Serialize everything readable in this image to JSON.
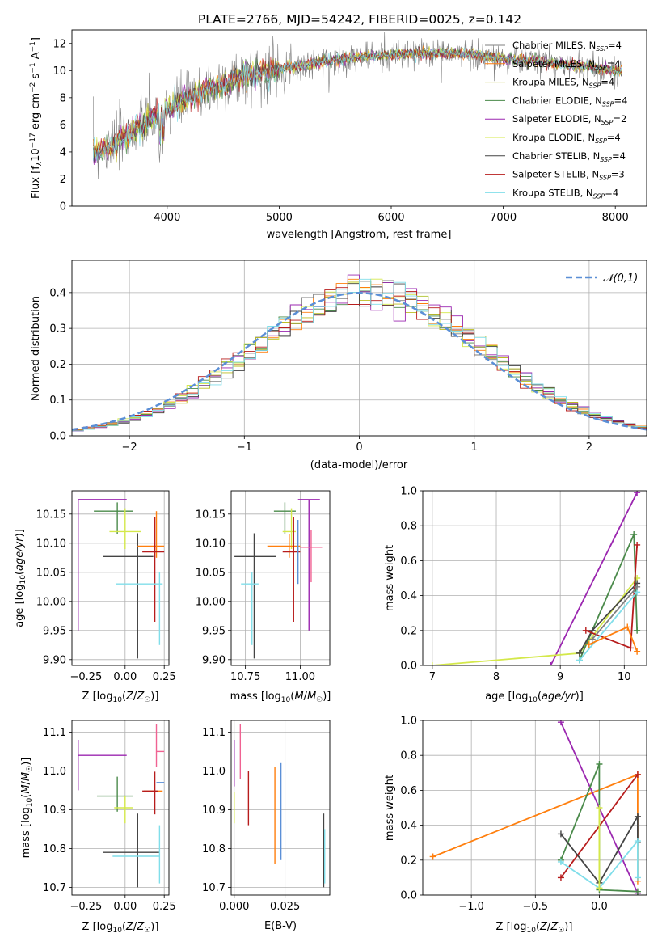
{
  "figure_title": "PLATE=2766, MJD=54242, FIBERID=0025, z=0.142",
  "chart_data": [
    {
      "id": "spectrum",
      "type": "line",
      "xlabel": "wavelength [Angstrom, rest frame]",
      "ylabel": "Flux [f_λ10^-17 erg cm^-2 s^-1 A^-1]",
      "xlim": [
        3150,
        8280
      ],
      "ylim": [
        0,
        13
      ],
      "xticks": [
        4000,
        5000,
        6000,
        7000,
        8000
      ],
      "yticks": [
        0,
        2,
        4,
        6,
        8,
        10,
        12
      ],
      "grid": false,
      "legend_position": "top-right",
      "data_envelope": {
        "x": [
          3340,
          3500,
          3700,
          3900,
          4100,
          4300,
          4500,
          4700,
          4900,
          5100,
          5300,
          5500,
          5700,
          5900,
          6100,
          6300,
          6500,
          6700,
          6900,
          7100,
          7300,
          7500,
          7700,
          7900,
          8060
        ],
        "y": [
          4.0,
          4.4,
          5.6,
          6.7,
          7.6,
          8.4,
          9.0,
          9.6,
          9.9,
          10.3,
          10.5,
          10.8,
          11.0,
          11.1,
          11.2,
          11.3,
          11.3,
          11.2,
          11.0,
          10.8,
          10.7,
          10.5,
          10.3,
          10.1,
          9.9
        ]
      },
      "series": [
        {
          "name": "Chabrier MILES, N_SSP=4",
          "color": "#7f7f7f"
        },
        {
          "name": "Salpeter MILES, N_SSP=4",
          "color": "#ff7f0e"
        },
        {
          "name": "Kroupa MILES, N_SSP=4",
          "color": "#bcbd22"
        },
        {
          "name": "Chabrier ELODIE, N_SSP=4",
          "color": "#4a8a4a"
        },
        {
          "name": "Salpeter ELODIE, N_SSP=2",
          "color": "#9b27b0"
        },
        {
          "name": "Kroupa ELODIE, N_SSP=4",
          "color": "#d4e84a"
        },
        {
          "name": "Chabrier STELIB, N_SSP=4",
          "color": "#444444"
        },
        {
          "name": "Salpeter STELIB, N_SSP=3",
          "color": "#b71c1c"
        },
        {
          "name": "Kroupa STELIB, N_SSP=4",
          "color": "#80deea"
        }
      ]
    },
    {
      "id": "residuals",
      "type": "line",
      "xlabel": "(data-model)/error",
      "ylabel": "Normed distribution",
      "xlim": [
        -2.5,
        2.5
      ],
      "ylim": [
        0,
        0.49
      ],
      "xticks": [
        -2,
        -1,
        0,
        1,
        2
      ],
      "yticks": [
        0.0,
        0.1,
        0.2,
        0.3,
        0.4
      ],
      "grid": true,
      "legend_position": "top-right",
      "reference": {
        "name": "𝒩(0,1)",
        "color": "#5b8fd6",
        "style": "dashed"
      },
      "bin_width": 0.1
    },
    {
      "id": "age-vs-Z",
      "type": "errorbar",
      "xlabel": "Z [log10(Z/Z☉)]",
      "ylabel": "age [log10(age/yr)]",
      "xlim": [
        -0.34,
        0.28
      ],
      "ylim": [
        9.89,
        10.19
      ],
      "xticks": [
        -0.25,
        0.0,
        0.25
      ],
      "yticks": [
        9.9,
        9.95,
        10.0,
        10.05,
        10.1,
        10.15
      ],
      "grid": true,
      "points": [
        {
          "x": -0.3,
          "xerr": [
            0.0,
            0.31
          ],
          "y": 10.175,
          "yerr": [
            0.225,
            0.0
          ],
          "color": "#9b27b0"
        },
        {
          "x": -0.05,
          "xerr": [
            0.15,
            0.1
          ],
          "y": 10.155,
          "yerr": [
            0.04,
            0.015
          ],
          "color": "#4a8a4a"
        },
        {
          "x": 0.0,
          "xerr": [
            0.1,
            0.1
          ],
          "y": 10.12,
          "yerr": [
            0.03,
            0.04
          ],
          "color": "#d4e84a"
        },
        {
          "x": 0.08,
          "xerr": [
            0.22,
            0.1
          ],
          "y": 10.077,
          "yerr": [
            0.175,
            0.04
          ],
          "color": "#444444"
        },
        {
          "x": 0.2,
          "xerr": [
            0.12,
            0.05
          ],
          "y": 10.095,
          "yerr": [
            0.02,
            0.06
          ],
          "color": "#ff7f0e"
        },
        {
          "x": 0.19,
          "xerr": [
            0.08,
            0.06
          ],
          "y": 10.085,
          "yerr": [
            0.12,
            0.06
          ],
          "color": "#b71c1c"
        },
        {
          "x": 0.22,
          "xerr": [
            0.28,
            0.02
          ],
          "y": 10.03,
          "yerr": [
            0.105,
            0.02
          ],
          "color": "#80deea"
        }
      ]
    },
    {
      "id": "age-vs-mass",
      "type": "errorbar",
      "xlabel": "mass [log10(M/M☉)]",
      "ylabel": "",
      "xlim": [
        10.685,
        11.135
      ],
      "ylim": [
        9.89,
        10.19
      ],
      "xticks": [
        10.75,
        11.0
      ],
      "yticks": [
        9.9,
        9.95,
        10.0,
        10.05,
        10.1,
        10.15
      ],
      "grid": true,
      "points": [
        {
          "x": 11.04,
          "xerr": [
            0.05,
            0.05
          ],
          "y": 10.175,
          "yerr": [
            0.225,
            0.0
          ],
          "color": "#9b27b0"
        },
        {
          "x": 10.93,
          "xerr": [
            0.05,
            0.05
          ],
          "y": 10.155,
          "yerr": [
            0.04,
            0.015
          ],
          "color": "#4a8a4a"
        },
        {
          "x": 10.96,
          "xerr": [
            0.04,
            0.02
          ],
          "y": 10.12,
          "yerr": [
            0.03,
            0.04
          ],
          "color": "#d4e84a"
        },
        {
          "x": 10.79,
          "xerr": [
            0.09,
            0.1
          ],
          "y": 10.077,
          "yerr": [
            0.175,
            0.04
          ],
          "color": "#444444"
        },
        {
          "x": 10.95,
          "xerr": [
            0.1,
            0.05
          ],
          "y": 10.095,
          "yerr": [
            0.02,
            0.02
          ],
          "color": "#ff7f0e"
        },
        {
          "x": 10.97,
          "xerr": [
            0.05,
            0.03
          ],
          "y": 10.085,
          "yerr": [
            0.12,
            0.06
          ],
          "color": "#b71c1c"
        },
        {
          "x": 10.78,
          "xerr": [
            0.05,
            0.03
          ],
          "y": 10.03,
          "yerr": [
            0.105,
            0.02
          ],
          "color": "#80deea"
        },
        {
          "x": 11.05,
          "xerr": [
            0.05,
            0.05
          ],
          "y": 10.093,
          "yerr": [
            0.06,
            0.03
          ],
          "color": "#f06292"
        },
        {
          "x": 10.99,
          "xerr": [
            0.0,
            0.0
          ],
          "y": 10.09,
          "yerr": [
            0.06,
            0.05
          ],
          "color": "#5b8fd6"
        }
      ]
    },
    {
      "id": "weight-vs-age",
      "type": "line",
      "xlabel": "age [log10(age/yr)]",
      "ylabel": "mass weight",
      "xlim": [
        6.85,
        10.35
      ],
      "ylim": [
        0,
        1
      ],
      "xticks": [
        7,
        8,
        9,
        10
      ],
      "yticks": [
        0.0,
        0.2,
        0.4,
        0.6,
        0.8,
        1.0
      ],
      "grid": true,
      "series": [
        {
          "color": "#9b27b0",
          "x": [
            8.85,
            10.2
          ],
          "y": [
            0.0,
            0.99
          ]
        },
        {
          "color": "#d4e84a",
          "x": [
            7.0,
            9.3,
            10.2
          ],
          "y": [
            0.0,
            0.07,
            0.5
          ]
        },
        {
          "color": "#4a8a4a",
          "x": [
            9.3,
            10.15,
            10.2
          ],
          "y": [
            0.03,
            0.75,
            0.2
          ]
        },
        {
          "color": "#444444",
          "x": [
            9.3,
            9.5,
            10.2
          ],
          "y": [
            0.07,
            0.2,
            0.47
          ]
        },
        {
          "color": "#b71c1c",
          "x": [
            9.4,
            10.1,
            10.2
          ],
          "y": [
            0.2,
            0.1,
            0.69
          ]
        },
        {
          "color": "#80deea",
          "x": [
            9.3,
            10.2
          ],
          "y": [
            0.03,
            0.42
          ]
        },
        {
          "color": "#ff7f0e",
          "x": [
            9.45,
            10.05,
            10.2
          ],
          "y": [
            0.12,
            0.22,
            0.08
          ]
        },
        {
          "color": "#7f7f7f",
          "x": [
            9.5,
            10.2
          ],
          "y": [
            0.15,
            0.45
          ]
        }
      ]
    },
    {
      "id": "mass-vs-Z",
      "type": "errorbar",
      "xlabel": "Z [log10(Z/Z☉)]",
      "ylabel": "mass [log10(M/M☉)]",
      "xlim": [
        -0.34,
        0.28
      ],
      "ylim": [
        10.68,
        11.13
      ],
      "xticks": [
        -0.25,
        0.0,
        0.25
      ],
      "yticks": [
        10.7,
        10.8,
        10.9,
        11.0,
        11.1
      ],
      "grid": true,
      "points": [
        {
          "x": -0.3,
          "xerr": [
            0.0,
            0.31
          ],
          "y": 11.04,
          "yerr": [
            0.09,
            0.04
          ],
          "color": "#9b27b0"
        },
        {
          "x": -0.05,
          "xerr": [
            0.13,
            0.1
          ],
          "y": 10.935,
          "yerr": [
            0.04,
            0.05
          ],
          "color": "#4a8a4a"
        },
        {
          "x": 0.0,
          "xerr": [
            0.07,
            0.05
          ],
          "y": 10.905,
          "yerr": [
            0.04,
            0.03
          ],
          "color": "#d4e84a"
        },
        {
          "x": 0.08,
          "xerr": [
            0.22,
            0.14
          ],
          "y": 10.79,
          "yerr": [
            0.09,
            0.1
          ],
          "color": "#444444"
        },
        {
          "x": 0.2,
          "xerr": [
            0.08,
            0.04
          ],
          "y": 10.948,
          "yerr": [
            0.0,
            0.0
          ],
          "color": "#ff7f0e"
        },
        {
          "x": 0.19,
          "xerr": [
            0.08,
            0.02
          ],
          "y": 10.948,
          "yerr": [
            0.06,
            0.05
          ],
          "color": "#b71c1c"
        },
        {
          "x": 0.22,
          "xerr": [
            0.3,
            0.0
          ],
          "y": 10.78,
          "yerr": [
            0.07,
            0.08
          ],
          "color": "#80deea"
        },
        {
          "x": 0.2,
          "xerr": [
            0.0,
            0.05
          ],
          "y": 11.05,
          "yerr": [
            0.04,
            0.07
          ],
          "color": "#f06292"
        },
        {
          "x": 0.2,
          "xerr": [
            0.0,
            0.05
          ],
          "y": 10.97,
          "yerr": [
            0.0,
            0.0
          ],
          "color": "#5b8fd6"
        }
      ]
    },
    {
      "id": "mass-vs-EBV",
      "type": "errorbar",
      "xlabel": "E(B-V)",
      "ylabel": "",
      "xlim": [
        -0.0015,
        0.047
      ],
      "ylim": [
        10.68,
        11.13
      ],
      "xticks": [
        0.0,
        0.025
      ],
      "yticks": [
        10.7,
        10.8,
        10.9,
        11.0,
        11.1
      ],
      "grid": true,
      "points": [
        {
          "x": 0.0,
          "y": 11.04,
          "yerr": [
            0.08,
            0.04
          ],
          "color": "#9b27b0"
        },
        {
          "x": 0.0,
          "y": 10.905,
          "yerr": [
            0.04,
            0.04
          ],
          "color": "#d4e84a"
        },
        {
          "x": 0.003,
          "y": 11.05,
          "yerr": [
            0.07,
            0.07
          ],
          "color": "#f06292"
        },
        {
          "x": 0.007,
          "y": 10.93,
          "yerr": [
            0.07,
            0.07
          ],
          "color": "#b71c1c"
        },
        {
          "x": 0.02,
          "y": 10.89,
          "yerr": [
            0.13,
            0.12
          ],
          "color": "#ff7f0e"
        },
        {
          "x": 0.023,
          "y": 10.9,
          "yerr": [
            0.13,
            0.12
          ],
          "color": "#5b8fd6"
        },
        {
          "x": 0.044,
          "y": 10.79,
          "yerr": [
            0.09,
            0.1
          ],
          "color": "#444444"
        },
        {
          "x": 0.0445,
          "y": 10.78,
          "yerr": [
            0.07,
            0.07
          ],
          "color": "#80deea"
        }
      ]
    },
    {
      "id": "weight-vs-Z",
      "type": "line",
      "xlabel": "Z [log10(Z/Z☉)]",
      "ylabel": "mass weight",
      "xlim": [
        -1.38,
        0.37
      ],
      "ylim": [
        0,
        1
      ],
      "xticks": [
        -1.0,
        -0.5,
        0.0
      ],
      "yticks": [
        0.0,
        0.2,
        0.4,
        0.6,
        0.8,
        1.0
      ],
      "grid": true,
      "series": [
        {
          "color": "#ff7f0e",
          "x": [
            -1.3,
            0.3,
            0.3
          ],
          "y": [
            0.22,
            0.69,
            0.08
          ]
        },
        {
          "color": "#9b27b0",
          "x": [
            -0.3,
            0.3
          ],
          "y": [
            0.99,
            0.01
          ]
        },
        {
          "color": "#4a8a4a",
          "x": [
            -0.3,
            0.0,
            0.0,
            0.3
          ],
          "y": [
            0.2,
            0.75,
            0.03,
            0.02
          ]
        },
        {
          "color": "#b71c1c",
          "x": [
            -0.3,
            0.3
          ],
          "y": [
            0.1,
            0.69
          ]
        },
        {
          "color": "#444444",
          "x": [
            -0.3,
            0.0,
            0.3,
            0.3
          ],
          "y": [
            0.35,
            0.07,
            0.45,
            0.3
          ]
        },
        {
          "color": "#80deea",
          "x": [
            -0.3,
            0.0,
            0.3,
            0.3
          ],
          "y": [
            0.19,
            0.04,
            0.31,
            0.1
          ]
        },
        {
          "color": "#d4e84a",
          "x": [
            0.0,
            0.0
          ],
          "y": [
            0.5,
            0.04
          ]
        }
      ]
    }
  ]
}
